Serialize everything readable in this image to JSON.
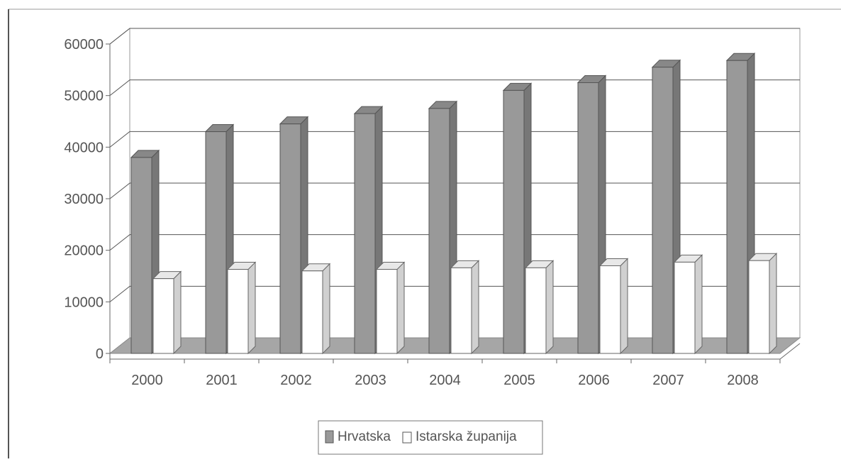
{
  "chart_data": {
    "type": "bar",
    "title": "",
    "xlabel": "",
    "ylabel": "",
    "categories": [
      "2000",
      "2001",
      "2002",
      "2003",
      "2004",
      "2005",
      "2006",
      "2007",
      "2008"
    ],
    "series": [
      {
        "name": "Hrvatska",
        "color": "#999999",
        "values": [
          38000,
          43000,
          44500,
          46500,
          47500,
          51000,
          52500,
          55500,
          56800
        ]
      },
      {
        "name": "Istarska županija",
        "color": "#ffffff",
        "values": [
          14500,
          16300,
          16000,
          16300,
          16600,
          16600,
          17000,
          17700,
          18000
        ]
      }
    ],
    "ylim": [
      0,
      60000
    ],
    "yticks": [
      "0",
      "10000",
      "20000",
      "30000",
      "40000",
      "50000",
      "60000"
    ],
    "grid": true,
    "legend_position": "bottom",
    "style": "3d-column"
  }
}
